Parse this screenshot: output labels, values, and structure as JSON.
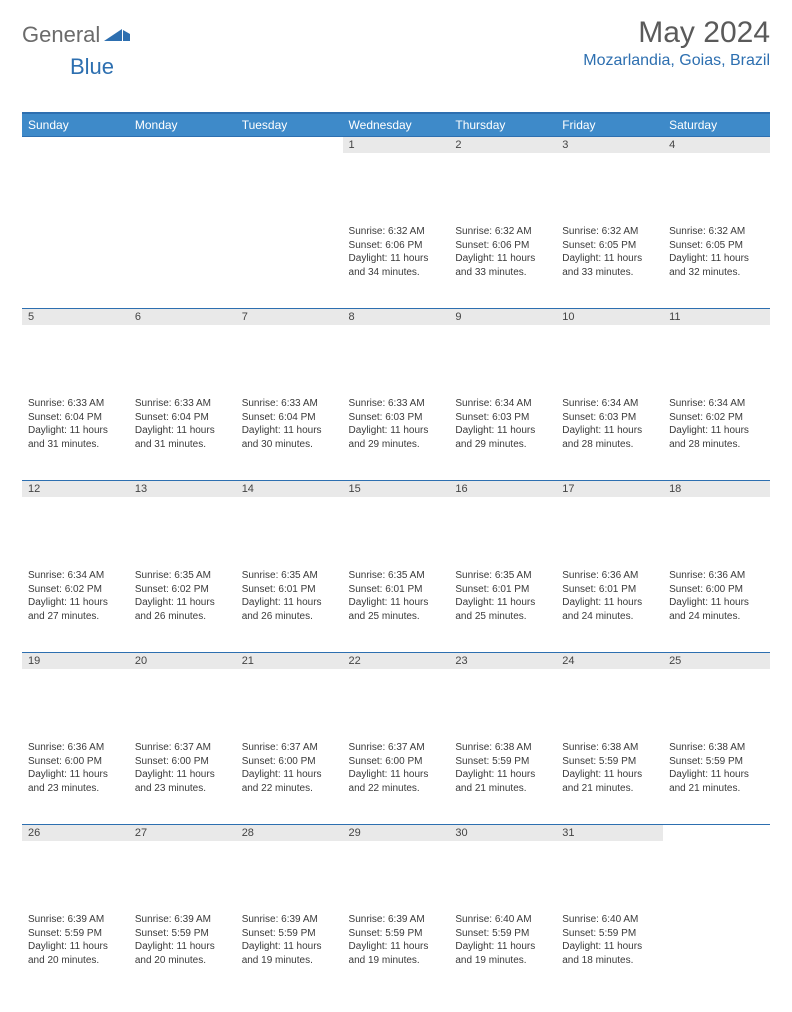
{
  "brand": {
    "part1": "General",
    "part2": "Blue"
  },
  "title": "May 2024",
  "location": "Mozarlandia, Goias, Brazil",
  "colors": {
    "header_bg": "#3e8ac9",
    "accent": "#2d6fb0",
    "daynum_bg": "#e9e9e9",
    "text": "#3a3a3a",
    "title_text": "#5a5a5a"
  },
  "dayNames": [
    "Sunday",
    "Monday",
    "Tuesday",
    "Wednesday",
    "Thursday",
    "Friday",
    "Saturday"
  ],
  "weeks": [
    [
      null,
      null,
      null,
      {
        "n": "1",
        "sr": "6:32 AM",
        "ss": "6:06 PM",
        "dl": "11 hours and 34 minutes."
      },
      {
        "n": "2",
        "sr": "6:32 AM",
        "ss": "6:06 PM",
        "dl": "11 hours and 33 minutes."
      },
      {
        "n": "3",
        "sr": "6:32 AM",
        "ss": "6:05 PM",
        "dl": "11 hours and 33 minutes."
      },
      {
        "n": "4",
        "sr": "6:32 AM",
        "ss": "6:05 PM",
        "dl": "11 hours and 32 minutes."
      }
    ],
    [
      {
        "n": "5",
        "sr": "6:33 AM",
        "ss": "6:04 PM",
        "dl": "11 hours and 31 minutes."
      },
      {
        "n": "6",
        "sr": "6:33 AM",
        "ss": "6:04 PM",
        "dl": "11 hours and 31 minutes."
      },
      {
        "n": "7",
        "sr": "6:33 AM",
        "ss": "6:04 PM",
        "dl": "11 hours and 30 minutes."
      },
      {
        "n": "8",
        "sr": "6:33 AM",
        "ss": "6:03 PM",
        "dl": "11 hours and 29 minutes."
      },
      {
        "n": "9",
        "sr": "6:34 AM",
        "ss": "6:03 PM",
        "dl": "11 hours and 29 minutes."
      },
      {
        "n": "10",
        "sr": "6:34 AM",
        "ss": "6:03 PM",
        "dl": "11 hours and 28 minutes."
      },
      {
        "n": "11",
        "sr": "6:34 AM",
        "ss": "6:02 PM",
        "dl": "11 hours and 28 minutes."
      }
    ],
    [
      {
        "n": "12",
        "sr": "6:34 AM",
        "ss": "6:02 PM",
        "dl": "11 hours and 27 minutes."
      },
      {
        "n": "13",
        "sr": "6:35 AM",
        "ss": "6:02 PM",
        "dl": "11 hours and 26 minutes."
      },
      {
        "n": "14",
        "sr": "6:35 AM",
        "ss": "6:01 PM",
        "dl": "11 hours and 26 minutes."
      },
      {
        "n": "15",
        "sr": "6:35 AM",
        "ss": "6:01 PM",
        "dl": "11 hours and 25 minutes."
      },
      {
        "n": "16",
        "sr": "6:35 AM",
        "ss": "6:01 PM",
        "dl": "11 hours and 25 minutes."
      },
      {
        "n": "17",
        "sr": "6:36 AM",
        "ss": "6:01 PM",
        "dl": "11 hours and 24 minutes."
      },
      {
        "n": "18",
        "sr": "6:36 AM",
        "ss": "6:00 PM",
        "dl": "11 hours and 24 minutes."
      }
    ],
    [
      {
        "n": "19",
        "sr": "6:36 AM",
        "ss": "6:00 PM",
        "dl": "11 hours and 23 minutes."
      },
      {
        "n": "20",
        "sr": "6:37 AM",
        "ss": "6:00 PM",
        "dl": "11 hours and 23 minutes."
      },
      {
        "n": "21",
        "sr": "6:37 AM",
        "ss": "6:00 PM",
        "dl": "11 hours and 22 minutes."
      },
      {
        "n": "22",
        "sr": "6:37 AM",
        "ss": "6:00 PM",
        "dl": "11 hours and 22 minutes."
      },
      {
        "n": "23",
        "sr": "6:38 AM",
        "ss": "5:59 PM",
        "dl": "11 hours and 21 minutes."
      },
      {
        "n": "24",
        "sr": "6:38 AM",
        "ss": "5:59 PM",
        "dl": "11 hours and 21 minutes."
      },
      {
        "n": "25",
        "sr": "6:38 AM",
        "ss": "5:59 PM",
        "dl": "11 hours and 21 minutes."
      }
    ],
    [
      {
        "n": "26",
        "sr": "6:39 AM",
        "ss": "5:59 PM",
        "dl": "11 hours and 20 minutes."
      },
      {
        "n": "27",
        "sr": "6:39 AM",
        "ss": "5:59 PM",
        "dl": "11 hours and 20 minutes."
      },
      {
        "n": "28",
        "sr": "6:39 AM",
        "ss": "5:59 PM",
        "dl": "11 hours and 19 minutes."
      },
      {
        "n": "29",
        "sr": "6:39 AM",
        "ss": "5:59 PM",
        "dl": "11 hours and 19 minutes."
      },
      {
        "n": "30",
        "sr": "6:40 AM",
        "ss": "5:59 PM",
        "dl": "11 hours and 19 minutes."
      },
      {
        "n": "31",
        "sr": "6:40 AM",
        "ss": "5:59 PM",
        "dl": "11 hours and 18 minutes."
      },
      null
    ]
  ],
  "labels": {
    "sunrise": "Sunrise:",
    "sunset": "Sunset:",
    "daylight": "Daylight:"
  }
}
